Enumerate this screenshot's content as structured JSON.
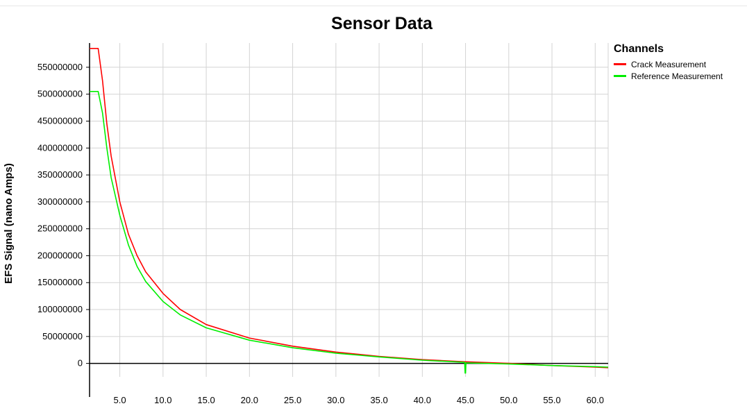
{
  "chart_data": {
    "type": "line",
    "title": "Sensor Data",
    "xlabel": "",
    "ylabel": "EFS Signal (nano Amps)",
    "xlim": [
      1.5,
      61.5
    ],
    "ylim": [
      -25000000,
      595000000
    ],
    "x_ticks": [
      "5.0",
      "10.0",
      "15.0",
      "20.0",
      "25.0",
      "30.0",
      "35.0",
      "40.0",
      "45.0",
      "50.0",
      "55.0",
      "60.0"
    ],
    "y_ticks": [
      "0",
      "50000000",
      "100000000",
      "150000000",
      "200000000",
      "250000000",
      "300000000",
      "350000000",
      "400000000",
      "450000000",
      "500000000",
      "550000000"
    ],
    "grid": true,
    "legend_title": "Channels",
    "legend_position": "right",
    "series": [
      {
        "name": "Crack Measurement",
        "color": "#ff0000",
        "x": [
          1.5,
          2.0,
          2.5,
          3.0,
          3.5,
          4.0,
          5.0,
          6.0,
          7.0,
          8.0,
          10.0,
          12.0,
          15.0,
          20.0,
          25.0,
          30.0,
          35.0,
          40.0,
          45.0,
          50.0,
          55.0,
          60.0,
          61.5
        ],
        "y": [
          585000000,
          585000000,
          585000000,
          525000000,
          445000000,
          385000000,
          300000000,
          240000000,
          200000000,
          170000000,
          130000000,
          100000000,
          72000000,
          47000000,
          32000000,
          21000000,
          13000000,
          7000000,
          3000000,
          0,
          -4000000,
          -7000000,
          -8000000
        ]
      },
      {
        "name": "Reference Measurement",
        "color": "#00ee00",
        "x": [
          1.5,
          2.0,
          2.5,
          3.0,
          3.5,
          4.0,
          5.0,
          6.0,
          7.0,
          8.0,
          10.0,
          12.0,
          15.0,
          20.0,
          25.0,
          30.0,
          35.0,
          40.0,
          44.9,
          44.95,
          45.0,
          45.05,
          50.0,
          55.0,
          60.0,
          61.5
        ],
        "y": [
          505000000,
          505000000,
          505000000,
          465000000,
          400000000,
          345000000,
          275000000,
          220000000,
          180000000,
          152000000,
          115000000,
          90000000,
          66000000,
          43000000,
          29000000,
          19000000,
          12000000,
          6000000,
          2000000,
          -18000000,
          -18000000,
          1000000,
          -1000000,
          -4000000,
          -6000000,
          -7000000
        ]
      }
    ]
  }
}
